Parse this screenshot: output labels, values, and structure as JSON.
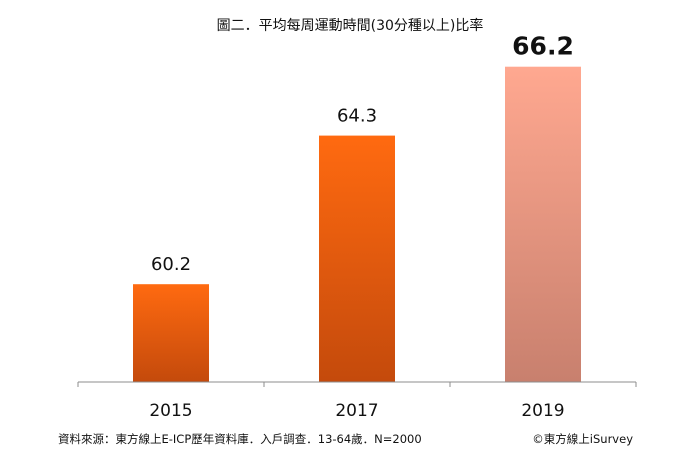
{
  "chart_data": {
    "type": "bar",
    "title": "圖二．平均每周運動時間(30分種以上)比率",
    "categories": [
      "2015",
      "2017",
      "2019"
    ],
    "values": [
      60.2,
      64.3,
      66.2
    ],
    "value_labels": [
      "60.2",
      "64.3",
      "66.2"
    ],
    "highlight_index": 2,
    "xlabel": "",
    "ylabel": "",
    "ylim": [
      57.5,
      66.8
    ],
    "grid": false,
    "legend": "none",
    "colors": {
      "bar_top": "#ff6a10",
      "bar_bottom": "#c44a0c",
      "highlight_top": "#ffa890",
      "highlight_bottom": "#c8806e",
      "axis": "#8c8c8c"
    }
  },
  "footer": {
    "source": "資料來源：東方線上E-ICP歷年資料庫．入戶調查．13-64歲．N=2000",
    "copyright": "©東方線上iSurvey"
  }
}
